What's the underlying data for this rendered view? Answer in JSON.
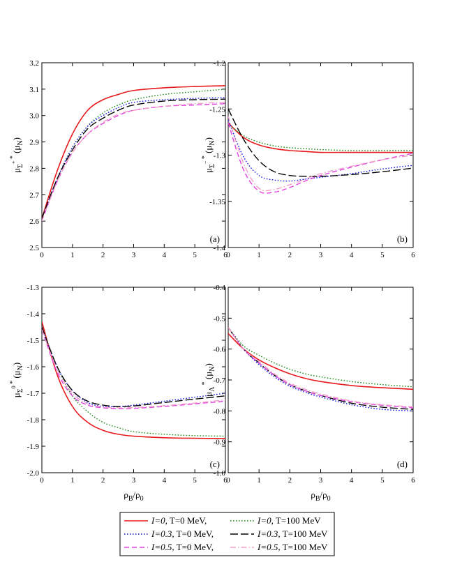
{
  "chart_data": [
    {
      "type": "line",
      "panel": "(a)",
      "ylabel": "μΣ+* (μN)",
      "xlabel": "",
      "xlim": [
        0,
        6
      ],
      "ylim": [
        2.5,
        3.2
      ],
      "xticks": [
        "0",
        "1",
        "2",
        "3",
        "4",
        "5",
        "6"
      ],
      "yticks": [
        "2.5",
        "2.6",
        "2.7",
        "2.8",
        "2.9",
        "3.0",
        "3.1",
        "3.2"
      ],
      "x": [
        0,
        0.5,
        1,
        1.5,
        2,
        2.5,
        3,
        4,
        5,
        6
      ],
      "series": [
        {
          "ref": 0,
          "values": [
            2.61,
            2.79,
            2.93,
            3.02,
            3.06,
            3.08,
            3.095,
            3.105,
            3.11,
            3.113
          ]
        },
        {
          "ref": 1,
          "values": [
            2.61,
            2.76,
            2.88,
            2.96,
            3.01,
            3.04,
            3.06,
            3.08,
            3.09,
            3.1
          ]
        },
        {
          "ref": 2,
          "values": [
            2.61,
            2.76,
            2.88,
            2.96,
            3.0,
            3.03,
            3.05,
            3.06,
            3.065,
            3.068
          ]
        },
        {
          "ref": 3,
          "values": [
            2.61,
            2.76,
            2.87,
            2.95,
            2.99,
            3.02,
            3.04,
            3.055,
            3.06,
            3.062
          ]
        },
        {
          "ref": 4,
          "values": [
            2.6,
            2.75,
            2.86,
            2.93,
            2.97,
            3.0,
            3.02,
            3.035,
            3.04,
            3.045
          ]
        },
        {
          "ref": 5,
          "values": [
            2.6,
            2.75,
            2.86,
            2.93,
            2.975,
            3.005,
            3.02,
            3.035,
            3.045,
            3.05
          ]
        }
      ]
    },
    {
      "type": "line",
      "panel": "(b)",
      "ylabel": "μΣ-* (μN)",
      "xlabel": "",
      "xlim": [
        0,
        6
      ],
      "ylim": [
        -1.4,
        -1.2
      ],
      "xticks": [
        "0",
        "1",
        "2",
        "3",
        "4",
        "5",
        "6"
      ],
      "yticks": [
        "-1.4",
        "-1.35",
        "-1.3",
        "-1.25",
        "-1.2"
      ],
      "x": [
        0,
        0.5,
        1,
        1.5,
        2,
        2.5,
        3,
        4,
        5,
        6
      ],
      "series": [
        {
          "ref": 0,
          "values": [
            -1.265,
            -1.281,
            -1.289,
            -1.293,
            -1.295,
            -1.296,
            -1.297,
            -1.297,
            -1.297,
            -1.297
          ]
        },
        {
          "ref": 1,
          "values": [
            -1.266,
            -1.279,
            -1.286,
            -1.29,
            -1.292,
            -1.293,
            -1.294,
            -1.295,
            -1.295,
            -1.295
          ]
        },
        {
          "ref": 2,
          "values": [
            -1.262,
            -1.302,
            -1.322,
            -1.327,
            -1.328,
            -1.326,
            -1.324,
            -1.32,
            -1.315,
            -1.311
          ]
        },
        {
          "ref": 3,
          "values": [
            -1.25,
            -1.283,
            -1.306,
            -1.318,
            -1.322,
            -1.323,
            -1.323,
            -1.321,
            -1.318,
            -1.314
          ]
        },
        {
          "ref": 4,
          "values": [
            -1.265,
            -1.316,
            -1.339,
            -1.34,
            -1.335,
            -1.328,
            -1.322,
            -1.313,
            -1.305,
            -1.298
          ]
        },
        {
          "ref": 5,
          "values": [
            -1.258,
            -1.309,
            -1.336,
            -1.337,
            -1.332,
            -1.326,
            -1.32,
            -1.312,
            -1.305,
            -1.3
          ]
        }
      ]
    },
    {
      "type": "line",
      "panel": "(c)",
      "ylabel": "μΣ0* (μN)",
      "xlabel": "ρB/ρ0",
      "xlim": [
        0,
        6
      ],
      "ylim": [
        -2.0,
        -1.3
      ],
      "xticks": [
        "0",
        "1",
        "2",
        "3",
        "4",
        "5",
        "6"
      ],
      "yticks": [
        "-2.0",
        "-1.9",
        "-1.8",
        "-1.7",
        "-1.6",
        "-1.5",
        "-1.4",
        "-1.3"
      ],
      "x": [
        0,
        0.5,
        1,
        1.5,
        2,
        2.5,
        3,
        4,
        5,
        6
      ],
      "series": [
        {
          "ref": 0,
          "values": [
            -1.43,
            -1.63,
            -1.75,
            -1.81,
            -1.84,
            -1.855,
            -1.862,
            -1.868,
            -1.87,
            -1.871
          ]
        },
        {
          "ref": 1,
          "values": [
            -1.45,
            -1.6,
            -1.71,
            -1.77,
            -1.81,
            -1.83,
            -1.845,
            -1.855,
            -1.86,
            -1.862
          ]
        },
        {
          "ref": 2,
          "values": [
            -1.45,
            -1.6,
            -1.69,
            -1.735,
            -1.75,
            -1.75,
            -1.745,
            -1.73,
            -1.715,
            -1.7
          ]
        },
        {
          "ref": 3,
          "values": [
            -1.45,
            -1.6,
            -1.69,
            -1.73,
            -1.745,
            -1.75,
            -1.748,
            -1.735,
            -1.722,
            -1.71
          ]
        },
        {
          "ref": 4,
          "values": [
            -1.46,
            -1.62,
            -1.71,
            -1.745,
            -1.755,
            -1.758,
            -1.757,
            -1.75,
            -1.74,
            -1.73
          ]
        },
        {
          "ref": 5,
          "values": [
            -1.46,
            -1.61,
            -1.7,
            -1.74,
            -1.752,
            -1.755,
            -1.754,
            -1.747,
            -1.737,
            -1.725
          ]
        }
      ]
    },
    {
      "type": "line",
      "panel": "(d)",
      "ylabel": "μΛ* (μN)",
      "xlabel": "ρB/ρ0",
      "xlim": [
        0,
        6
      ],
      "ylim": [
        -1.0,
        -0.4
      ],
      "xticks": [
        "0",
        "1",
        "2",
        "3",
        "4",
        "5",
        "6"
      ],
      "yticks": [
        "-1.0",
        "-0.9",
        "-0.8",
        "-0.7",
        "-0.6",
        "-0.5",
        "-0.4"
      ],
      "x": [
        0,
        0.5,
        1,
        1.5,
        2,
        2.5,
        3,
        4,
        5,
        6
      ],
      "series": [
        {
          "ref": 0,
          "values": [
            -0.55,
            -0.6,
            -0.635,
            -0.66,
            -0.68,
            -0.695,
            -0.705,
            -0.718,
            -0.725,
            -0.73
          ]
        },
        {
          "ref": 1,
          "values": [
            -0.53,
            -0.59,
            -0.62,
            -0.645,
            -0.665,
            -0.68,
            -0.69,
            -0.705,
            -0.715,
            -0.722
          ]
        },
        {
          "ref": 2,
          "values": [
            -0.53,
            -0.6,
            -0.65,
            -0.69,
            -0.72,
            -0.74,
            -0.755,
            -0.78,
            -0.795,
            -0.8
          ]
        },
        {
          "ref": 3,
          "values": [
            -0.53,
            -0.6,
            -0.645,
            -0.685,
            -0.715,
            -0.735,
            -0.75,
            -0.775,
            -0.788,
            -0.795
          ]
        },
        {
          "ref": 4,
          "values": [
            -0.53,
            -0.6,
            -0.645,
            -0.685,
            -0.715,
            -0.735,
            -0.75,
            -0.77,
            -0.782,
            -0.79
          ]
        },
        {
          "ref": 5,
          "values": [
            -0.53,
            -0.6,
            -0.64,
            -0.68,
            -0.71,
            -0.73,
            -0.745,
            -0.768,
            -0.78,
            -0.787
          ]
        }
      ]
    }
  ],
  "legend": {
    "placement": "bottom-center",
    "entries": [
      {
        "italic": "I=0",
        "rest": ", T=0 MeV,",
        "color": "#e8191c",
        "dash": "solid"
      },
      {
        "italic": "I=0",
        "rest": ", T=100 MeV",
        "color": "#1c8a1c",
        "dash": "dotted"
      },
      {
        "italic": "I=0.3",
        "rest": ", T=0 MeV,",
        "color": "#1a1ae6",
        "dash": "dotted"
      },
      {
        "italic": "I=0.3",
        "rest": ", T=100 MeV",
        "color": "#000000",
        "dash": "longdash"
      },
      {
        "italic": "I=0.5",
        "rest": ", T=0 MeV,",
        "color": "#e040e0",
        "dash": "dash"
      },
      {
        "italic": "I=0.5",
        "rest": ", T=100 MeV",
        "color": "#f0a0c8",
        "dash": "dashdot"
      }
    ]
  }
}
